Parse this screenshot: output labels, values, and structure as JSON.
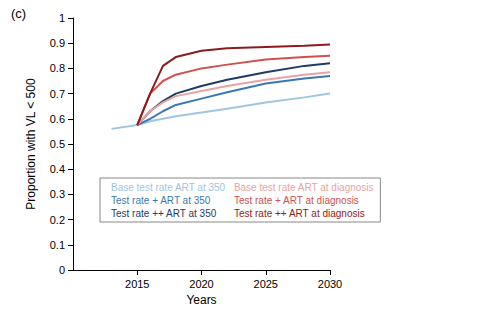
{
  "chart_data": {
    "type": "line",
    "title": "(c)",
    "x_label": "Years",
    "y_label": "Proportion with VL < 500",
    "xlim": [
      2010,
      2030
    ],
    "xticks": [
      2015,
      2020,
      2025,
      2030
    ],
    "ylim": [
      0,
      1
    ],
    "yticks": [
      0,
      0.1,
      0.2,
      0.3,
      0.4,
      0.5,
      0.6,
      0.7,
      0.8,
      0.9,
      1
    ],
    "grid": false,
    "legend": "center",
    "x": [
      2013,
      2015,
      2016,
      2017,
      2018,
      2020,
      2022,
      2025,
      2028,
      2030
    ],
    "series": [
      {
        "name": "Base test rate ART at 350",
        "color": "#9ec6e2",
        "values": [
          0.56,
          0.575,
          0.59,
          0.6,
          0.61,
          0.625,
          0.64,
          0.665,
          0.685,
          0.7
        ]
      },
      {
        "name": "Test rate + ART at 350",
        "color": "#3a78b5",
        "values": [
          null,
          0.575,
          0.6,
          0.63,
          0.655,
          0.68,
          0.705,
          0.74,
          0.76,
          0.77
        ]
      },
      {
        "name": "Test rate ++ ART at 350",
        "color": "#1f3c64",
        "values": [
          null,
          0.575,
          0.63,
          0.67,
          0.7,
          0.73,
          0.755,
          0.785,
          0.81,
          0.82
        ]
      },
      {
        "name": "Base test rate ART at diagnosis",
        "color": "#e8a3a3",
        "values": [
          null,
          0.575,
          0.63,
          0.665,
          0.69,
          0.71,
          0.73,
          0.755,
          0.775,
          0.785
        ]
      },
      {
        "name": "Test rate + ART at diagnosis",
        "color": "#d1504f",
        "values": [
          null,
          0.575,
          0.7,
          0.75,
          0.775,
          0.8,
          0.815,
          0.835,
          0.845,
          0.85
        ]
      },
      {
        "name": "Test rate ++ ART at diagnosis",
        "color": "#8c1c1c",
        "values": [
          null,
          0.575,
          0.7,
          0.81,
          0.845,
          0.87,
          0.88,
          0.885,
          0.89,
          0.895
        ]
      }
    ]
  }
}
